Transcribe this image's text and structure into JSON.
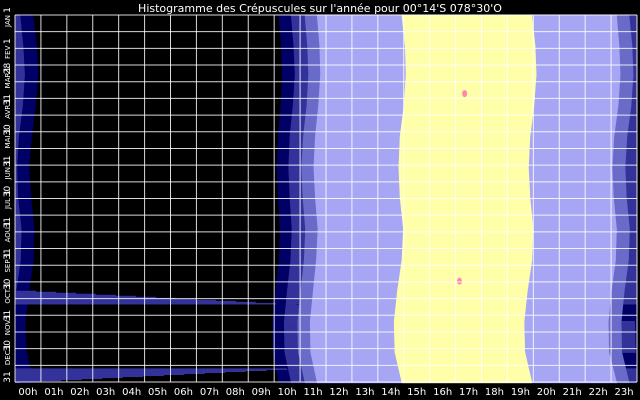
{
  "chart_data": {
    "type": "heatmap",
    "title": "Histogramme des Crépuscules sur l'année pour 00°14'S 078°30'O",
    "x_ticks": [
      "00h",
      "01h",
      "02h",
      "03h",
      "04h",
      "05h",
      "06h",
      "07h",
      "08h",
      "09h",
      "10h",
      "11h",
      "12h",
      "13h",
      "14h",
      "15h",
      "16h",
      "17h",
      "18h",
      "19h",
      "20h",
      "21h",
      "22h",
      "23h"
    ],
    "y_ticks": [
      {
        "label": "JAN",
        "day": 1
      },
      {
        "label": "1",
        "day": 1
      },
      {
        "label": "FEV",
        "day": 32
      },
      {
        "label": "1",
        "day": 32
      },
      {
        "label": "28",
        "day": 59
      },
      {
        "label": "MAR",
        "day": 60
      },
      {
        "label": "1",
        "day": 60
      },
      {
        "label": "31",
        "day": 90
      },
      {
        "label": "AVR",
        "day": 91
      },
      {
        "label": "1",
        "day": 91
      },
      {
        "label": "30",
        "day": 120
      },
      {
        "label": "MAI",
        "day": 121
      },
      {
        "label": "1",
        "day": 121
      },
      {
        "label": "31",
        "day": 151
      },
      {
        "label": "JUN",
        "day": 152
      },
      {
        "label": "1",
        "day": 152
      },
      {
        "label": "30",
        "day": 181
      },
      {
        "label": "JUL",
        "day": 182
      },
      {
        "label": "1",
        "day": 182
      },
      {
        "label": "31",
        "day": 212
      },
      {
        "label": "AOU",
        "day": 213
      },
      {
        "label": "1",
        "day": 213
      },
      {
        "label": "31",
        "day": 243
      },
      {
        "label": "SEP",
        "day": 244
      },
      {
        "label": "1",
        "day": 244
      },
      {
        "label": "30",
        "day": 273
      },
      {
        "label": "OCT",
        "day": 274
      },
      {
        "label": "1",
        "day": 274
      },
      {
        "label": "31",
        "day": 304
      },
      {
        "label": "NOV",
        "day": 305
      },
      {
        "label": "1",
        "day": 305
      },
      {
        "label": "30",
        "day": 334
      },
      {
        "label": "DEC",
        "day": 335
      },
      {
        "label": "1",
        "day": 335
      },
      {
        "label": "31",
        "day": 365
      }
    ],
    "x_range": [
      0,
      24
    ],
    "y_range_days": [
      1,
      365
    ],
    "grid": true,
    "band_colors": {
      "night": "#000000",
      "astronomical": "#000066",
      "nautical": "#33339a",
      "civil": "#6a6ac8",
      "day": "#a6a6f5",
      "sun_high": "#ffffaa",
      "marker": "#ff88aa",
      "grid": "#ffffff"
    },
    "day_samples": [
      1,
      32,
      60,
      91,
      121,
      152,
      182,
      213,
      244,
      274,
      305,
      335,
      365
    ],
    "bands": [
      {
        "name": "night",
        "start_h": [
          10.17,
          10.27,
          10.3,
          10.25,
          10.15,
          10.1,
          10.15,
          10.22,
          10.18,
          10.05,
          9.93,
          9.95,
          10.17
        ],
        "end_h": [
          24,
          24,
          24,
          24,
          24,
          24,
          24,
          24,
          24,
          24,
          24,
          24,
          24
        ]
      },
      {
        "name": "astronomical",
        "start_h": [
          10.17,
          10.27,
          10.3,
          10.25,
          10.15,
          10.1,
          10.15,
          10.22,
          10.18,
          10.05,
          9.93,
          9.95,
          10.17
        ],
        "end_h": [
          0.7,
          0.85,
          0.9,
          0.8,
          0.65,
          0.55,
          0.62,
          0.75,
          0.72,
          0.55,
          0.4,
          0.45,
          0.7
        ]
      },
      {
        "name": "nautical",
        "start_h": [
          10.65,
          10.75,
          10.8,
          10.72,
          10.6,
          10.55,
          10.6,
          10.68,
          10.63,
          10.5,
          10.38,
          10.4,
          10.65
        ],
        "end_h": [
          0.2,
          0.32,
          0.38,
          0.3,
          0.15,
          0.08,
          0.12,
          0.25,
          0.22,
          0.05,
          23.92,
          23.95,
          0.2
        ]
      },
      {
        "name": "civil",
        "start_h": [
          11.18,
          11.28,
          11.32,
          11.25,
          11.12,
          11.05,
          11.1,
          11.2,
          11.15,
          11.02,
          10.9,
          10.92,
          11.18
        ],
        "end_h": [
          23.7,
          23.82,
          23.86,
          23.78,
          23.62,
          23.55,
          23.6,
          23.72,
          23.68,
          23.52,
          23.4,
          23.42,
          23.7
        ]
      },
      {
        "name": "day",
        "start_h": [
          11.65,
          11.75,
          11.78,
          11.7,
          11.58,
          11.52,
          11.58,
          11.68,
          11.62,
          11.5,
          11.38,
          11.4,
          11.65
        ],
        "end_h": [
          23.22,
          23.32,
          23.36,
          23.28,
          23.12,
          23.05,
          23.1,
          23.22,
          23.18,
          23.02,
          22.9,
          22.92,
          23.22
        ]
      },
      {
        "name": "sun_high",
        "start_h": [
          14.92,
          15.05,
          15.08,
          15.0,
          14.85,
          14.8,
          14.85,
          14.98,
          14.92,
          14.75,
          14.62,
          14.65,
          14.92
        ],
        "end_h": [
          19.95,
          20.08,
          20.12,
          20.03,
          19.88,
          19.82,
          19.88,
          20.0,
          19.95,
          19.78,
          19.65,
          19.68,
          19.95
        ]
      }
    ],
    "markers": [
      {
        "day": 79,
        "hour": 17.35
      },
      {
        "day": 265,
        "hour": 17.15
      }
    ]
  }
}
